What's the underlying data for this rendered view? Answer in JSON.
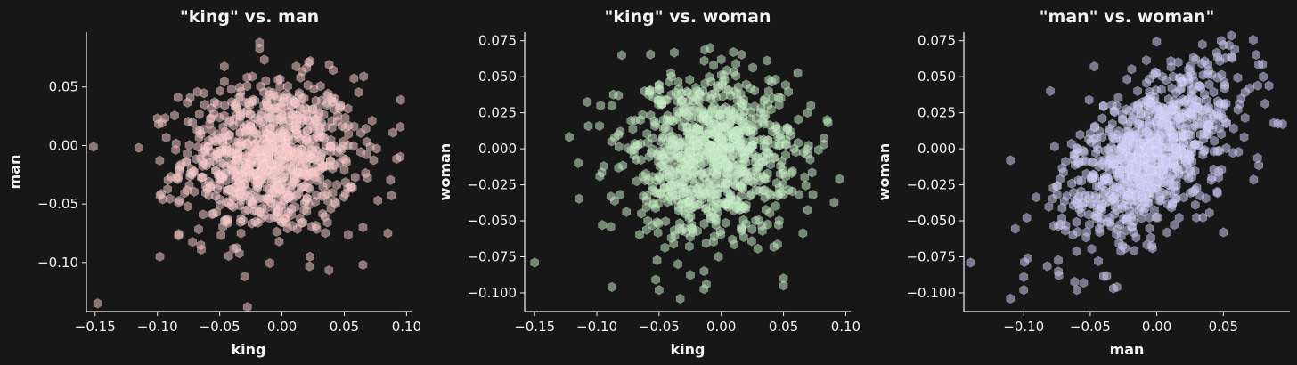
{
  "figure": {
    "background": "#171717",
    "text_color": "#f2f2f2"
  },
  "chart_data": [
    {
      "type": "scatter",
      "marker": "hexagon",
      "title": "\"king\" vs. man",
      "xlabel": "king",
      "ylabel": "man",
      "color": "#f4c2c2",
      "xlim": [
        -0.157,
        0.104
      ],
      "ylim": [
        -0.142,
        0.097
      ],
      "xticks": [
        -0.15,
        -0.1,
        -0.05,
        0.0,
        0.05,
        0.1
      ],
      "xtick_labels": [
        "−0.15",
        "−0.10",
        "−0.05",
        "0.00",
        "0.05",
        "0.10"
      ],
      "yticks": [
        -0.1,
        -0.05,
        0.0,
        0.05
      ],
      "ytick_labels": [
        "−0.10",
        "−0.05",
        "0.00",
        "0.05"
      ],
      "cloud": {
        "n": 900,
        "x_center": -0.01,
        "y_center": -0.01,
        "x_sd": 0.035,
        "y_sd": 0.033,
        "correlation": 0.05
      },
      "points": [
        {
          "x": -0.148,
          "y": -0.135
        },
        {
          "x": -0.115,
          "y": -0.002
        },
        {
          "x": 0.095,
          "y": 0.016
        },
        {
          "x": 0.089,
          "y": 0.011
        },
        {
          "x": -0.018,
          "y": 0.088
        },
        {
          "x": -0.018,
          "y": 0.083
        },
        {
          "x": 0.065,
          "y": -0.102
        },
        {
          "x": -0.03,
          "y": -0.112
        },
        {
          "x": 0.077,
          "y": -0.047
        },
        {
          "x": 0.065,
          "y": -0.07
        },
        {
          "x": -0.098,
          "y": -0.095
        },
        {
          "x": 0.085,
          "y": -0.075
        }
      ]
    },
    {
      "type": "scatter",
      "marker": "hexagon",
      "title": "\"king\" vs. woman",
      "xlabel": "king",
      "ylabel": "woman",
      "color": "#bde8bd",
      "xlim": [
        -0.158,
        0.104
      ],
      "ylim": [
        -0.113,
        0.081
      ],
      "xticks": [
        -0.15,
        -0.1,
        -0.05,
        0.0,
        0.05,
        0.1
      ],
      "xtick_labels": [
        "−0.15",
        "−0.10",
        "−0.05",
        "0.00",
        "0.05",
        "0.10"
      ],
      "yticks": [
        -0.1,
        -0.075,
        -0.05,
        -0.025,
        0.0,
        0.025,
        0.05,
        0.075
      ],
      "ytick_labels": [
        "−0.100",
        "−0.075",
        "−0.050",
        "−0.025",
        "0.000",
        "0.025",
        "0.050",
        "0.075"
      ],
      "cloud": {
        "n": 900,
        "x_center": -0.01,
        "y_center": -0.005,
        "x_sd": 0.035,
        "y_sd": 0.03,
        "correlation": 0.05
      },
      "points": [
        {
          "x": -0.15,
          "y": -0.079
        },
        {
          "x": -0.115,
          "y": -0.01
        },
        {
          "x": -0.097,
          "y": 0.03
        },
        {
          "x": -0.088,
          "y": 0.03
        },
        {
          "x": -0.08,
          "y": 0.065
        },
        {
          "x": -0.088,
          "y": -0.096
        },
        {
          "x": -0.05,
          "y": -0.098
        },
        {
          "x": -0.033,
          "y": -0.104
        },
        {
          "x": 0.05,
          "y": -0.09
        },
        {
          "x": 0.05,
          "y": -0.095
        },
        {
          "x": 0.095,
          "y": -0.021
        },
        {
          "x": 0.085,
          "y": 0.02
        },
        {
          "x": 0.072,
          "y": 0.03
        },
        {
          "x": 0.0,
          "y": 0.062
        }
      ]
    },
    {
      "type": "scatter",
      "marker": "hexagon",
      "title": "\"man\" vs. woman\"",
      "xlabel": "man",
      "ylabel": "woman",
      "color": "#c8c8f4",
      "xlim": [
        -0.145,
        0.1
      ],
      "ylim": [
        -0.113,
        0.081
      ],
      "xticks": [
        -0.1,
        -0.05,
        0.0,
        0.05
      ],
      "xtick_labels": [
        "−0.10",
        "−0.05",
        "0.00",
        "0.05"
      ],
      "yticks": [
        -0.1,
        -0.075,
        -0.05,
        -0.025,
        0.0,
        0.025,
        0.05,
        0.075
      ],
      "ytick_labels": [
        "−0.100",
        "−0.075",
        "−0.050",
        "−0.025",
        "0.000",
        "0.025",
        "0.050",
        "0.075"
      ],
      "cloud": {
        "n": 900,
        "x_center": -0.005,
        "y_center": -0.005,
        "x_sd": 0.032,
        "y_sd": 0.03,
        "correlation": 0.5
      },
      "points": [
        {
          "x": -0.14,
          "y": -0.079
        },
        {
          "x": -0.11,
          "y": -0.104
        },
        {
          "x": -0.1,
          "y": -0.098
        },
        {
          "x": -0.1,
          "y": -0.089
        },
        {
          "x": -0.055,
          "y": -0.093
        },
        {
          "x": -0.06,
          "y": -0.098
        },
        {
          "x": -0.03,
          "y": -0.096
        },
        {
          "x": 0.08,
          "y": 0.05
        },
        {
          "x": 0.088,
          "y": 0.018
        },
        {
          "x": 0.05,
          "y": 0.072
        },
        {
          "x": 0.05,
          "y": -0.058
        },
        {
          "x": -0.08,
          "y": 0.04
        },
        {
          "x": -0.11,
          "y": -0.008
        }
      ]
    }
  ]
}
